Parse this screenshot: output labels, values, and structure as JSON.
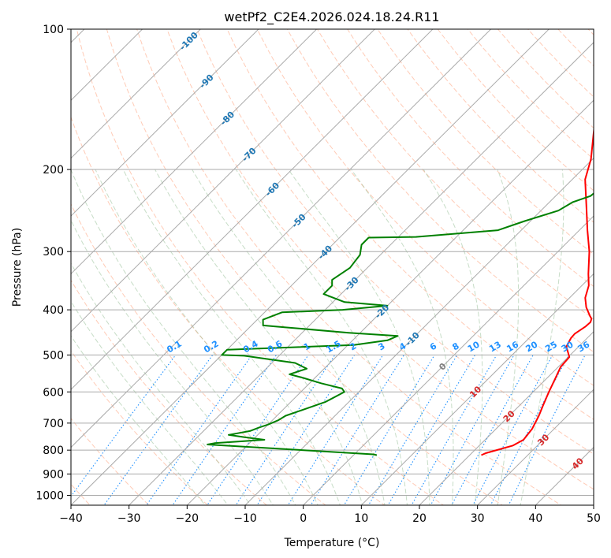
{
  "chart_data": {
    "type": "line",
    "title": "wetPf2_C2E4.2026.024.18.24.R11",
    "xlabel": "Temperature (°C)",
    "ylabel": "Pressure (hPa)",
    "xlim": [
      -40,
      50
    ],
    "ylim": [
      1050,
      100
    ],
    "y_scale": "log",
    "grid": true,
    "x_ticks": [
      -40,
      -30,
      -20,
      -10,
      0,
      10,
      20,
      30,
      40,
      50
    ],
    "y_ticks": [
      100,
      200,
      300,
      400,
      500,
      600,
      700,
      800,
      900,
      1000
    ],
    "isotherm_labels": [
      "-100",
      "-90",
      "-80",
      "-70",
      "-60",
      "-50",
      "-40",
      "-30",
      "-20",
      "-10",
      "0",
      "10",
      "20",
      "30",
      "40"
    ],
    "mixing_ratio_labels": [
      "0.1",
      "0.2",
      "0.4",
      "0.6",
      "1",
      "1.5",
      "2",
      "3",
      "4",
      "6",
      "8",
      "10",
      "13",
      "16",
      "20",
      "25",
      "30",
      "36"
    ],
    "colors": {
      "temperature": "#ff0000",
      "dewpoint": "#008000",
      "isotherm_labels_cold": "#1f77b4",
      "isotherm_labels_warm": "#d62728",
      "isotherm_label_zero": "#808080",
      "mixing_ratio": "#1e90ff",
      "dry_adiabat": "#ffa07a",
      "moist_adiabat": "#8fbc8f",
      "saturation": "#d2b48c"
    },
    "series": [
      {
        "name": "",
        "kind": "temperature",
        "points": [
          [
            22,
            820
          ],
          [
            22.4,
            812
          ],
          [
            25.8,
            782
          ],
          [
            26.6,
            760
          ],
          [
            26.2,
            720
          ],
          [
            25.1,
            675
          ],
          [
            24,
            640
          ],
          [
            22.7,
            600
          ],
          [
            21.6,
            565
          ],
          [
            20.4,
            530
          ],
          [
            20.2,
            505
          ],
          [
            17.9,
            480
          ],
          [
            17.2,
            460
          ],
          [
            17.1,
            450
          ],
          [
            17.7,
            435
          ],
          [
            17.8,
            425
          ],
          [
            17.4,
            418
          ],
          [
            16.6,
            412
          ],
          [
            14.5,
            395
          ],
          [
            12.7,
            377
          ],
          [
            11.2,
            355
          ],
          [
            9.1,
            335
          ],
          [
            5.4,
            300
          ],
          [
            1.4,
            270
          ],
          [
            -2.9,
            240
          ],
          [
            -7.8,
            210
          ],
          [
            -10.3,
            190
          ],
          [
            -15.7,
            160
          ],
          [
            -18.8,
            140
          ],
          [
            -21.9,
            125
          ],
          [
            -24.5,
            115
          ],
          [
            -24.2,
            110
          ],
          [
            -21.5,
            104
          ],
          [
            -20.5,
            100
          ]
        ]
      },
      {
        "name": "",
        "kind": "dewpoint",
        "points": [
          [
            4,
            820
          ],
          [
            3.3,
            817
          ],
          [
            -27,
            778
          ],
          [
            -26,
            773
          ],
          [
            -18,
            760
          ],
          [
            -22,
            750
          ],
          [
            -25,
            742
          ],
          [
            -22,
            728
          ],
          [
            -21,
            715
          ],
          [
            -20,
            705
          ],
          [
            -19,
            690
          ],
          [
            -18.5,
            675
          ],
          [
            -17,
            660
          ],
          [
            -14,
            630
          ],
          [
            -12.5,
            600
          ],
          [
            -13.5,
            590
          ],
          [
            -18,
            575
          ],
          [
            -22,
            560
          ],
          [
            -25,
            550
          ],
          [
            -23,
            535
          ],
          [
            -26,
            520
          ],
          [
            -36,
            502
          ],
          [
            -40,
            500
          ],
          [
            -40,
            487
          ],
          [
            -19,
            476
          ],
          [
            -14,
            465
          ],
          [
            -13,
            455
          ],
          [
            -22,
            448
          ],
          [
            -34,
            436
          ],
          [
            -38,
            432
          ],
          [
            -39,
            420
          ],
          [
            -37,
            405
          ],
          [
            -27,
            400
          ],
          [
            -20,
            392
          ],
          [
            -28,
            385
          ],
          [
            -33,
            370
          ],
          [
            -33,
            355
          ],
          [
            -34,
            345
          ],
          [
            -33,
            325
          ],
          [
            -33.5,
            305
          ],
          [
            -35,
            290
          ],
          [
            -35,
            280
          ],
          [
            -27,
            279
          ],
          [
            -14,
            270
          ],
          [
            -11,
            258
          ],
          [
            -7,
            245
          ],
          [
            -6,
            235
          ],
          [
            -4,
            228
          ],
          [
            -3.5,
            215
          ],
          [
            -4,
            205
          ],
          [
            -2.7,
            182
          ],
          [
            -2,
            170
          ],
          [
            -0.8,
            160
          ],
          [
            -0.6,
            140
          ],
          [
            -0.4,
            130
          ],
          [
            -1,
            123
          ],
          [
            -1.3,
            117
          ],
          [
            -1.3,
            110
          ],
          [
            -0.7,
            105
          ],
          [
            0.3,
            100
          ]
        ]
      }
    ]
  }
}
